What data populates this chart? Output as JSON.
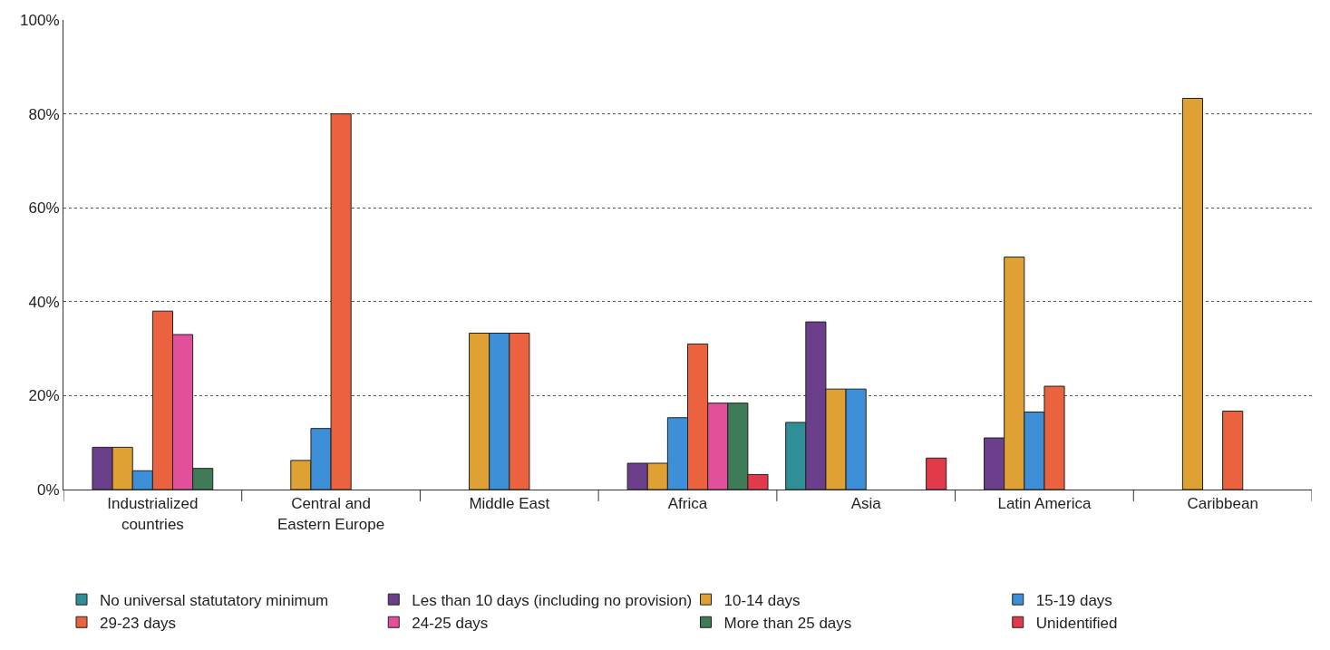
{
  "chart_data": {
    "type": "bar",
    "categories": [
      "Industrialized countries",
      "Central and Eastern Europe",
      "Middle East",
      "Africa",
      "Asia",
      "Latin America",
      "Caribbean"
    ],
    "series": [
      {
        "name": "No universal statutatory minimum",
        "color": "#2e8f96",
        "values": [
          null,
          null,
          null,
          null,
          14.3,
          null,
          null
        ]
      },
      {
        "name": "Les than 10 days (including no provision)",
        "color": "#6b3f8c",
        "values": [
          9,
          null,
          null,
          5.6,
          35.7,
          11,
          null
        ]
      },
      {
        "name": "10-14 days",
        "color": "#e0a134",
        "values": [
          9,
          6.2,
          33.3,
          5.6,
          21.4,
          49.5,
          83.3
        ]
      },
      {
        "name": "15-19 days",
        "color": "#3d8fd8",
        "values": [
          4,
          13,
          33.3,
          15.3,
          21.4,
          16.5,
          null
        ]
      },
      {
        "name": "29-23 days",
        "color": "#ea633e",
        "values": [
          38,
          80,
          33.3,
          31,
          null,
          22,
          16.7
        ]
      },
      {
        "name": "24-25 days",
        "color": "#e2509b",
        "values": [
          33,
          null,
          null,
          18.4,
          null,
          null,
          null
        ]
      },
      {
        "name": "More than 25 days",
        "color": "#3f7b56",
        "values": [
          4.5,
          null,
          null,
          18.4,
          null,
          null,
          null
        ]
      },
      {
        "name": "Unidentified",
        "color": "#e33a4b",
        "values": [
          null,
          null,
          null,
          3.2,
          6.7,
          null,
          null
        ]
      }
    ],
    "ylim": [
      0,
      100
    ],
    "yticks": [
      {
        "value": 0,
        "label": "0%"
      },
      {
        "value": 20,
        "label": "20%"
      },
      {
        "value": 40,
        "label": "40%"
      },
      {
        "value": 60,
        "label": "60%"
      },
      {
        "value": 80,
        "label": "80%"
      },
      {
        "value": 100,
        "label": "100%"
      }
    ],
    "grid": "y",
    "legend": "bottom"
  }
}
